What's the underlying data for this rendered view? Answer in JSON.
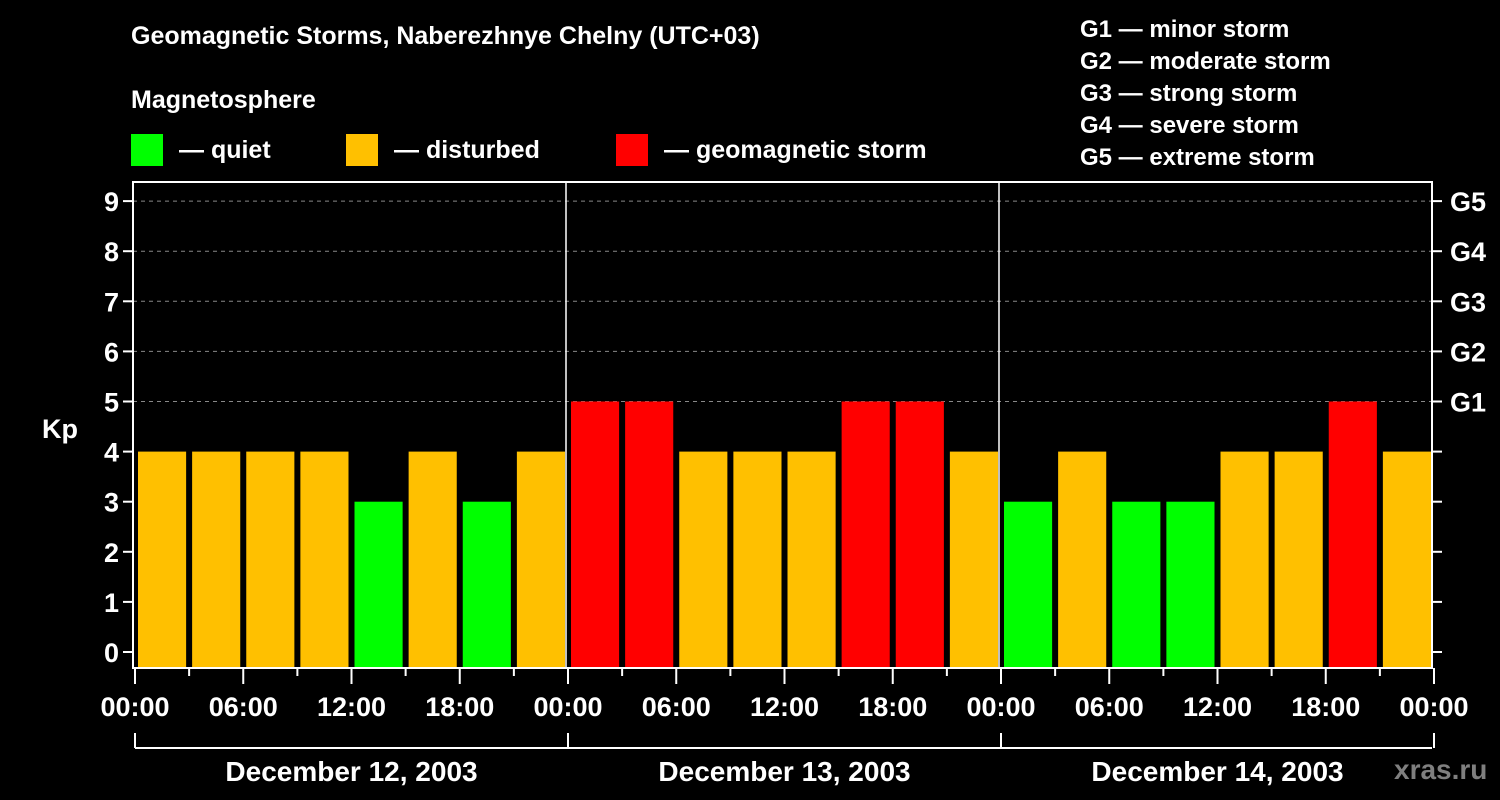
{
  "header": {
    "title": "Geomagnetic Storms, Naberezhnye Chelny (UTC+03)",
    "subtitle": "Magnetosphere"
  },
  "legend": [
    {
      "label": "— quiet",
      "color": "#00ff00"
    },
    {
      "label": "— disturbed",
      "color": "#ffc000"
    },
    {
      "label": "— geomagnetic storm",
      "color": "#ff0000"
    }
  ],
  "g_scale": [
    "G1 — minor storm",
    "G2 — moderate storm",
    "G3 — strong storm",
    "G4 — severe storm",
    "G5 — extreme storm"
  ],
  "watermark": "xras.ru",
  "chart_data": {
    "type": "bar",
    "title": "Geomagnetic Storms, Naberezhnye Chelny (UTC+03)",
    "ylabel": "Kp",
    "xlabel": "",
    "ylim": [
      0,
      9
    ],
    "yticks": [
      0,
      1,
      2,
      3,
      4,
      5,
      6,
      7,
      8,
      9
    ],
    "right_axis_labels": [
      {
        "kp": 5,
        "label": "G1"
      },
      {
        "kp": 6,
        "label": "G2"
      },
      {
        "kp": 7,
        "label": "G3"
      },
      {
        "kp": 8,
        "label": "G4"
      },
      {
        "kp": 9,
        "label": "G5"
      }
    ],
    "grid": "dashed horizontal at Kp 5–9",
    "xtick_labels": [
      "00:00",
      "06:00",
      "12:00",
      "18:00",
      "00:00",
      "06:00",
      "12:00",
      "18:00",
      "00:00",
      "06:00",
      "12:00",
      "18:00",
      "00:00"
    ],
    "days": [
      "December 12, 2003",
      "December 13, 2003",
      "December 14, 2003"
    ],
    "categories": [
      "Dec 12 00:00",
      "Dec 12 03:00",
      "Dec 12 06:00",
      "Dec 12 09:00",
      "Dec 12 12:00",
      "Dec 12 15:00",
      "Dec 12 18:00",
      "Dec 12 21:00",
      "Dec 13 00:00",
      "Dec 13 03:00",
      "Dec 13 06:00",
      "Dec 13 09:00",
      "Dec 13 12:00",
      "Dec 13 15:00",
      "Dec 13 18:00",
      "Dec 13 21:00",
      "Dec 14 00:00",
      "Dec 14 03:00",
      "Dec 14 06:00",
      "Dec 14 09:00",
      "Dec 14 12:00",
      "Dec 14 15:00",
      "Dec 14 18:00",
      "Dec 14 21:00"
    ],
    "values": [
      4,
      4,
      4,
      4,
      3,
      4,
      3,
      4,
      5,
      5,
      4,
      4,
      4,
      5,
      5,
      4,
      3,
      4,
      3,
      3,
      4,
      4,
      5,
      4
    ],
    "colors": {
      "quiet": "#00ff00",
      "disturbed": "#ffc000",
      "storm": "#ff0000"
    },
    "color_rule": "Kp<=3 quiet, Kp=4 disturbed, Kp>=5 storm"
  }
}
